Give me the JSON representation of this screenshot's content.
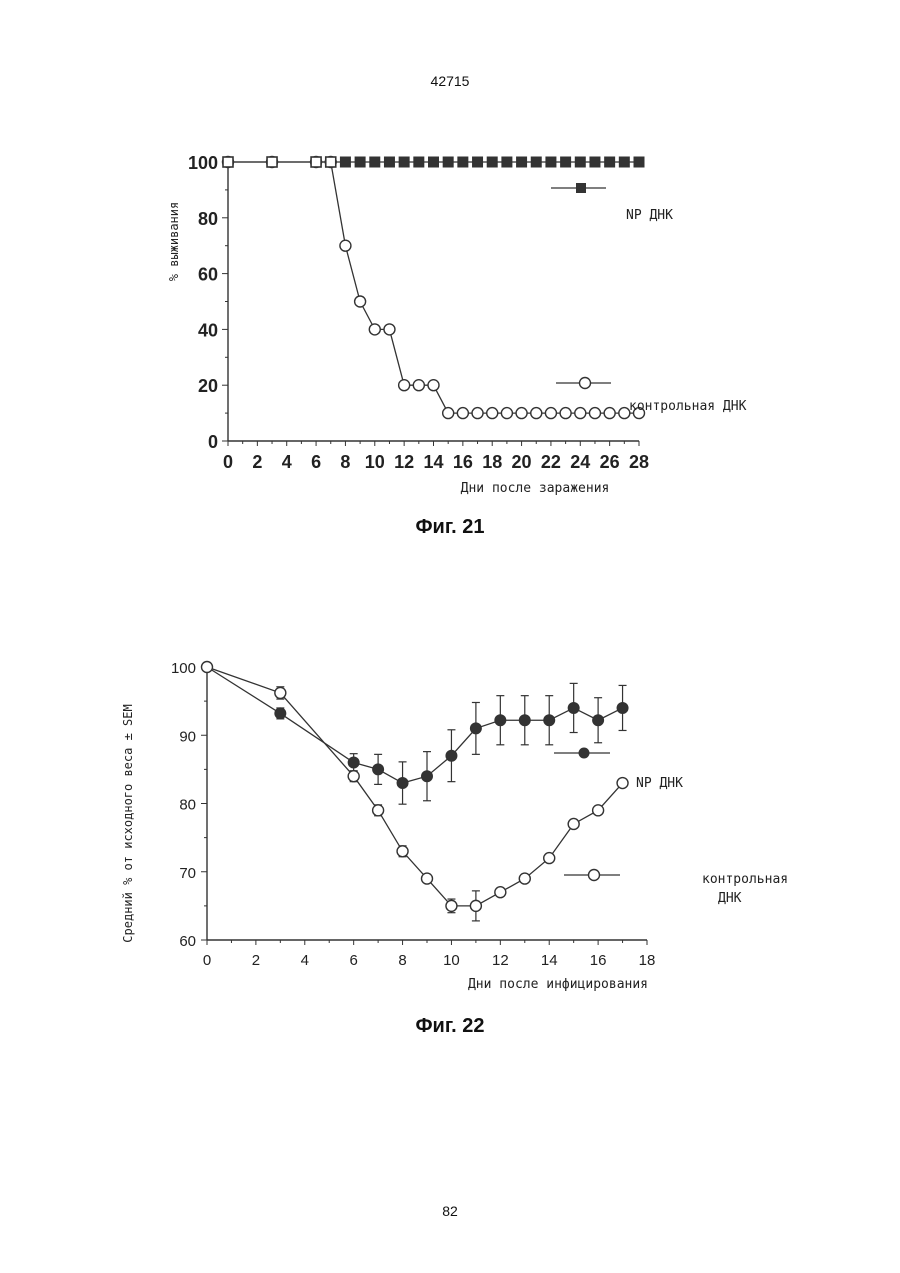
{
  "page": {
    "header": "42715",
    "footer": "82"
  },
  "chart_data": [
    {
      "type": "line",
      "caption": "Фиг. 21",
      "xlabel": "Дни после заражения",
      "ylabel": "% выживания",
      "xlim": [
        0,
        28
      ],
      "ylim": [
        0,
        100
      ],
      "xticks": [
        "0",
        "2",
        "4",
        "6",
        "8",
        "10",
        "12",
        "14",
        "16",
        "18",
        "20",
        "22",
        "24",
        "26",
        "28"
      ],
      "yticks": [
        "0",
        "20",
        "40",
        "60",
        "80",
        "100"
      ],
      "grid": false,
      "legend_position": "right",
      "series": [
        {
          "name": "NP ДНК",
          "marker": "filled-square",
          "x": [
            0,
            3,
            6,
            7,
            8,
            9,
            10,
            11,
            12,
            13,
            14,
            15,
            16,
            17,
            18,
            19,
            20,
            21,
            22,
            23,
            24,
            25,
            26,
            27,
            28
          ],
          "y": [
            100,
            100,
            100,
            100,
            100,
            100,
            100,
            100,
            100,
            100,
            100,
            100,
            100,
            100,
            100,
            100,
            100,
            100,
            100,
            100,
            100,
            100,
            100,
            100,
            100
          ]
        },
        {
          "name": "контрольная ДНК",
          "marker": "open-circle",
          "x": [
            0,
            3,
            6,
            7,
            8,
            9,
            10,
            11,
            12,
            13,
            14,
            15,
            16,
            17,
            18,
            19,
            20,
            21,
            22,
            23,
            24,
            25,
            26,
            27,
            28
          ],
          "y": [
            100,
            100,
            100,
            100,
            70,
            50,
            40,
            40,
            20,
            20,
            20,
            10,
            10,
            10,
            10,
            10,
            10,
            10,
            10,
            10,
            10,
            10,
            10,
            10,
            10
          ]
        }
      ]
    },
    {
      "type": "line",
      "caption": "Фиг. 22",
      "xlabel": "Дни после инфицирования",
      "ylabel": "Средний % от исходного веса ± SEM",
      "xlim": [
        0,
        18
      ],
      "ylim": [
        60,
        100
      ],
      "xticks": [
        "0",
        "2",
        "4",
        "6",
        "8",
        "10",
        "12",
        "14",
        "16",
        "18"
      ],
      "yticks": [
        "60",
        "70",
        "80",
        "90",
        "100"
      ],
      "grid": false,
      "legend_position": "right",
      "series": [
        {
          "name": "NP ДНК",
          "marker": "filled-circle",
          "x": [
            0,
            3,
            6,
            7,
            8,
            9,
            10,
            11,
            12,
            13,
            14,
            15,
            16,
            17
          ],
          "y": [
            100,
            93.2,
            86,
            85,
            83,
            84,
            87,
            91,
            92.2,
            92.2,
            92.2,
            94,
            92.2,
            94
          ],
          "err": [
            0,
            0.8,
            1.3,
            2.2,
            3.1,
            3.6,
            3.8,
            3.8,
            3.6,
            3.6,
            3.6,
            3.6,
            3.3,
            3.3
          ]
        },
        {
          "name": "контрольная ДНК",
          "marker": "open-circle",
          "x": [
            0,
            3,
            6,
            7,
            8,
            9,
            10,
            11,
            12,
            13,
            14,
            15,
            16,
            17
          ],
          "y": [
            100,
            96.2,
            84,
            79,
            73,
            69,
            65,
            65,
            67,
            69,
            72,
            77,
            79,
            83
          ],
          "err": [
            0,
            0.9,
            0.8,
            0.8,
            0.8,
            0,
            1,
            2.2,
            0,
            0,
            0,
            0,
            0,
            0
          ]
        }
      ]
    }
  ]
}
